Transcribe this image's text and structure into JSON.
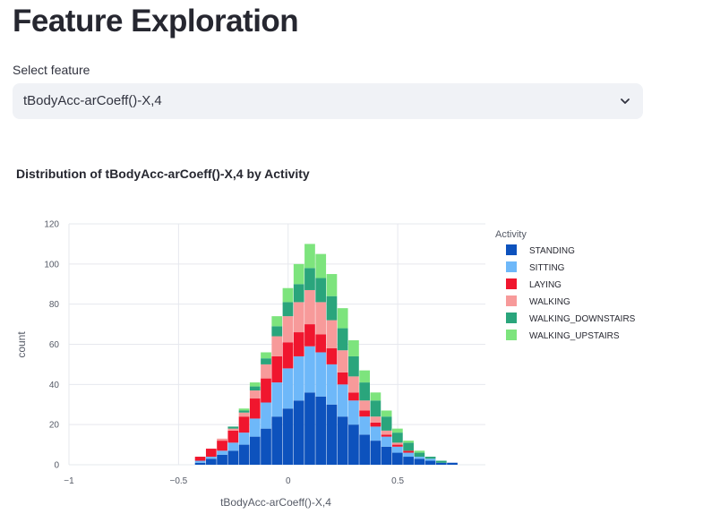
{
  "page": {
    "title": "Feature Exploration"
  },
  "select": {
    "label": "Select feature",
    "value": "tBodyAcc-arCoeff()-X,4",
    "chevron_icon": "chevron-down-icon"
  },
  "chart_data": {
    "type": "bar",
    "stacked": true,
    "title": "Distribution of tBodyAcc-arCoeff()-X,4 by Activity",
    "xlabel": "tBodyAcc-arCoeff()-X,4",
    "ylabel": "count",
    "xlim": [
      -1,
      0.9
    ],
    "ylim": [
      0,
      120
    ],
    "x_ticks": [
      -1,
      -0.5,
      0,
      0.5
    ],
    "x_tick_labels": [
      "−1",
      "−0.5",
      "0",
      "0.5"
    ],
    "y_ticks": [
      0,
      20,
      40,
      60,
      80,
      100,
      120
    ],
    "grid": true,
    "legend": {
      "title": "Activity",
      "placement": "right",
      "entries": [
        "STANDING",
        "SITTING",
        "LAYING",
        "WALKING",
        "WALKING_DOWNSTAIRS",
        "WALKING_UPSTAIRS"
      ]
    },
    "colors": [
      "#0d52bd",
      "#6eb8f9",
      "#f0162e",
      "#f79a9a",
      "#2aa57c",
      "#7de47d"
    ],
    "x": [
      -0.4,
      -0.35,
      -0.3,
      -0.25,
      -0.2,
      -0.15,
      -0.1,
      -0.05,
      0,
      0.05,
      0.1,
      0.15,
      0.2,
      0.25,
      0.3,
      0.35,
      0.4,
      0.45,
      0.5,
      0.55,
      0.6,
      0.65,
      0.7,
      0.75,
      0.8
    ],
    "bin_width": 0.05,
    "series": [
      {
        "name": "STANDING",
        "values": [
          1,
          3,
          5,
          7,
          10,
          14,
          18,
          24,
          28,
          32,
          36,
          34,
          30,
          24,
          20,
          15,
          12,
          9,
          6,
          4,
          3,
          2,
          1,
          1,
          0
        ]
      },
      {
        "name": "SITTING",
        "values": [
          1,
          1,
          2,
          4,
          6,
          9,
          13,
          17,
          20,
          22,
          23,
          22,
          20,
          16,
          12,
          9,
          7,
          5,
          3,
          2,
          1,
          1,
          0,
          0,
          0
        ]
      },
      {
        "name": "LAYING",
        "values": [
          2,
          4,
          5,
          6,
          8,
          10,
          12,
          13,
          13,
          12,
          11,
          9,
          8,
          6,
          4,
          3,
          2,
          1,
          1,
          1,
          0,
          0,
          0,
          0,
          0
        ]
      },
      {
        "name": "WALKING",
        "values": [
          0,
          0,
          1,
          1,
          2,
          4,
          7,
          10,
          13,
          15,
          17,
          16,
          14,
          11,
          8,
          5,
          3,
          2,
          1,
          0,
          0,
          0,
          0,
          0,
          0
        ]
      },
      {
        "name": "WALKING_DOWNSTAIRS",
        "values": [
          0,
          0,
          0,
          1,
          1,
          2,
          3,
          5,
          7,
          9,
          11,
          12,
          12,
          11,
          10,
          9,
          8,
          7,
          5,
          4,
          2,
          1,
          1,
          0,
          0
        ]
      },
      {
        "name": "WALKING_UPSTAIRS",
        "values": [
          0,
          0,
          0,
          0,
          1,
          2,
          3,
          5,
          7,
          10,
          12,
          12,
          11,
          10,
          8,
          6,
          4,
          3,
          2,
          1,
          1,
          0,
          0,
          0,
          0
        ]
      }
    ]
  }
}
